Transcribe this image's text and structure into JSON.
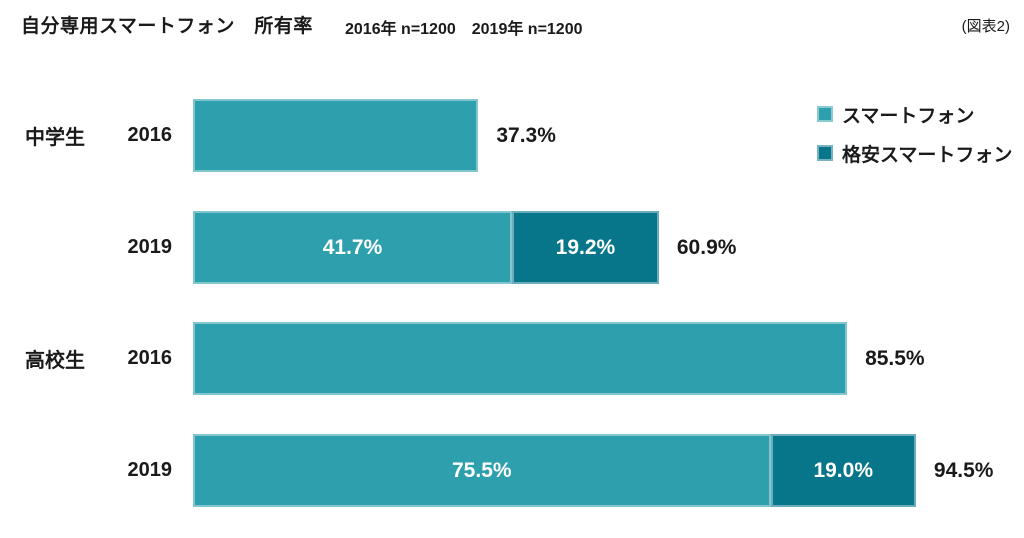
{
  "header": {
    "title": "自分専用スマートフォン　所有率",
    "subtitle": "2016年 n=1200　2019年 n=1200",
    "figure_ref": "(図表2)"
  },
  "colors": {
    "smartphone": "#2E9FAD",
    "budget_smartphone": "#07768A",
    "value_text_inside": "#FFFFFF",
    "value_text_outside": "#1A1A1A"
  },
  "legend": {
    "items": [
      {
        "label": "スマートフォン",
        "color": "#2E9FAD"
      },
      {
        "label": "格安スマートフォン",
        "color": "#07768A"
      }
    ]
  },
  "chart_data": {
    "type": "bar",
    "orientation": "horizontal",
    "stacked": true,
    "title": "自分専用スマートフォン　所有率",
    "xlim": [
      0,
      100
    ],
    "unit": "%",
    "grid": false,
    "legend_position": "top-right",
    "series_names": [
      "スマートフォン",
      "格安スマートフォン"
    ],
    "rows": [
      {
        "group": "中学生",
        "year": "2016",
        "segments": [
          {
            "series": "スマートフォン",
            "value": 37.3,
            "label": ""
          }
        ],
        "total": 37.3,
        "total_label": "37.3%"
      },
      {
        "group": "",
        "year": "2019",
        "segments": [
          {
            "series": "スマートフォン",
            "value": 41.7,
            "label": "41.7%"
          },
          {
            "series": "格安スマートフォン",
            "value": 19.2,
            "label": "19.2%"
          }
        ],
        "total": 60.9,
        "total_label": "60.9%"
      },
      {
        "group": "高校生",
        "year": "2016",
        "segments": [
          {
            "series": "スマートフォン",
            "value": 85.5,
            "label": ""
          }
        ],
        "total": 85.5,
        "total_label": "85.5%"
      },
      {
        "group": "",
        "year": "2019",
        "segments": [
          {
            "series": "スマートフォン",
            "value": 75.5,
            "label": "75.5%"
          },
          {
            "series": "格安スマートフォン",
            "value": 19.0,
            "label": "19.0%"
          }
        ],
        "total": 94.5,
        "total_label": "94.5%"
      }
    ]
  }
}
